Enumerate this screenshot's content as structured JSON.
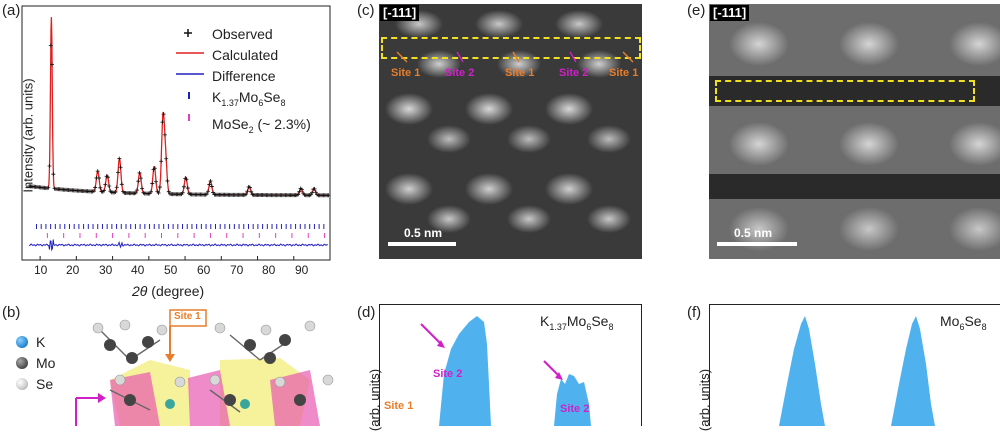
{
  "panel_labels": {
    "a": "(a)",
    "b": "(b)",
    "c": "(c)",
    "d": "(d)",
    "e": "(e)",
    "f": "(f)"
  },
  "chart_data": [
    {
      "type": "line",
      "panel": "(a)",
      "xlabel": "2θ (degree)",
      "ylabel": "Intensity (arb. units)",
      "xlim": [
        5,
        90
      ],
      "xticks": [
        "10",
        "20",
        "30",
        "40",
        "50",
        "60",
        "70",
        "80",
        "90"
      ],
      "legend_position": "top-right",
      "series": [
        {
          "name": "Observed",
          "marker": "+",
          "color": "#000000"
        },
        {
          "name": "Calculated",
          "color": "#e02020"
        },
        {
          "name": "Difference",
          "color": "#2020c0"
        },
        {
          "name": "K1.37Mo6Se8",
          "marker": "tick",
          "color": "#2020c0"
        },
        {
          "name": "MoSe2 (~ 2.3%)",
          "marker": "tick",
          "color": "#e040c0"
        }
      ],
      "peaks_x": [
        13.1,
        25.9,
        28.5,
        31.9,
        37.5,
        41.5,
        43.9,
        44.6,
        50.2,
        57.0,
        67.7,
        82.0,
        85.6
      ],
      "peaks_rel_intensity": [
        1.0,
        0.12,
        0.1,
        0.2,
        0.12,
        0.16,
        0.43,
        0.2,
        0.1,
        0.08,
        0.05,
        0.04,
        0.04
      ]
    },
    {
      "type": "area",
      "panel": "(d)",
      "title": "K1.37Mo6Se8",
      "ylabel": "(arb. units)",
      "color": "#4fb2ee",
      "annotations": [
        "Site 2",
        "Site 2",
        "Site 1"
      ]
    },
    {
      "type": "area",
      "panel": "(f)",
      "title": "Mo6Se8",
      "ylabel": "(arb. units)",
      "color": "#4fb2ee"
    }
  ],
  "legend": {
    "observed": "Observed",
    "calculated": "Calculated",
    "difference": "Difference",
    "k_formula_main": "K",
    "k_formula_sub": "1.37",
    "k_formula_mid": "Mo",
    "k_formula_sub2": "6",
    "k_formula_end": "Se",
    "k_formula_sub3": "8",
    "mose2_main": "MoSe",
    "mose2_sub": "2",
    "mose2_suffix": " (~ 2.3%)"
  },
  "axis_a": {
    "ylabel": "Intensity (arb. units)",
    "xlabel_theta": "2θ",
    "xlabel_unit": " (degree)",
    "ticks": [
      "10",
      "20",
      "30",
      "40",
      "50",
      "60",
      "70",
      "80",
      "90"
    ]
  },
  "panel_c": {
    "direction": "[-111]",
    "scale": "0.5 nm",
    "sites": [
      "Site 1",
      "Site 2",
      "Site 1",
      "Site 2",
      "Site 1"
    ]
  },
  "panel_e": {
    "direction": "[-111]",
    "scale": "0.5 nm"
  },
  "panel_b": {
    "legend": [
      "K",
      "Mo",
      "Se"
    ],
    "site1": "Site 1",
    "colors": {
      "K": "#2d8fd8",
      "Mo": "#555555",
      "Se": "#d0d0d0"
    }
  },
  "panel_d": {
    "title_main": "K",
    "title_sub": "1.37",
    "title_mid": "Mo",
    "title_sub2": "6",
    "title_end": "Se",
    "title_sub3": "8",
    "ylabel": "(arb. units)",
    "site2a": "Site 2",
    "site2b": "Site 2",
    "site1": "Site 1"
  },
  "panel_f": {
    "title_main": "Mo",
    "title_sub": "6",
    "title_end": "Se",
    "title_sub2": "8",
    "ylabel": "(arb. units)"
  }
}
